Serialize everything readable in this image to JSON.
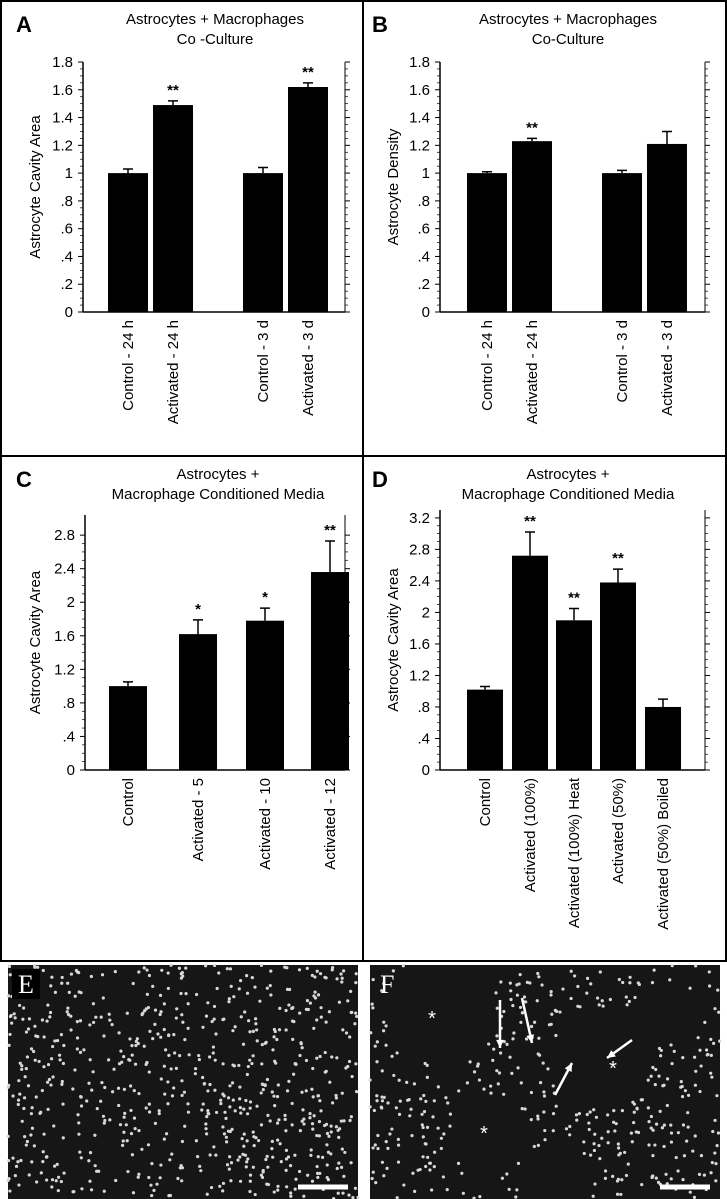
{
  "chart_data": [
    {
      "type": "bar",
      "panel": "A",
      "title": [
        "Astrocytes + Macrophages",
        "Co -Culture"
      ],
      "ylabel": "Astrocyte Cavity Area",
      "categories": [
        "Control - 24 h",
        "Activated - 24 h",
        "Control - 3 d",
        "Activated - 3 d"
      ],
      "values": [
        1.0,
        1.49,
        1.0,
        1.62
      ],
      "errors": [
        0.03,
        0.03,
        0.04,
        0.03
      ],
      "significance": [
        null,
        "**",
        null,
        "**"
      ],
      "color": "#000000",
      "ylim": [
        0,
        1.8
      ],
      "yticks": [
        0,
        {
          "value": 0.2,
          "label": ".2"
        },
        {
          "value": 0.4,
          "label": ".4"
        },
        {
          "value": 0.6,
          "label": ".6"
        },
        {
          "value": 0.8,
          "label": ".8"
        },
        1,
        1.2,
        1.4,
        1.6,
        1.8
      ]
    },
    {
      "type": "bar",
      "panel": "B",
      "title": [
        "Astrocytes + Macrophages",
        "Co-Culture"
      ],
      "ylabel": "Astrocyte Density",
      "categories": [
        "Control - 24 h",
        "Activated - 24 h",
        "Control - 3 d",
        "Activated - 3 d"
      ],
      "values": [
        1.0,
        1.23,
        1.0,
        1.21
      ],
      "errors": [
        0.01,
        0.02,
        0.02,
        0.09
      ],
      "significance": [
        null,
        "**",
        null,
        null
      ],
      "color": "#000000",
      "ylim": [
        0,
        1.8
      ],
      "yticks": [
        0,
        {
          "value": 0.2,
          "label": ".2"
        },
        {
          "value": 0.4,
          "label": ".4"
        },
        {
          "value": 0.6,
          "label": ".6"
        },
        {
          "value": 0.8,
          "label": ".8"
        },
        1,
        1.2,
        1.4,
        1.6,
        1.8
      ]
    },
    {
      "type": "bar",
      "panel": "C",
      "title": [
        "Astrocytes +",
        "Macrophage Conditioned Media"
      ],
      "ylabel": "Astrocyte Cavity Area",
      "categories": [
        "Control",
        "Activated - 5",
        "Activated - 10",
        "Activated - 12"
      ],
      "values": [
        1.0,
        1.62,
        1.78,
        2.36
      ],
      "errors": [
        0.05,
        0.17,
        0.15,
        0.37
      ],
      "significance": [
        null,
        "*",
        "*",
        "**"
      ],
      "color": "#000000",
      "ylim": [
        0,
        3.04
      ],
      "yticks": [
        0,
        {
          "value": 0.4,
          "label": ".4"
        },
        {
          "value": 0.8,
          "label": ".8"
        },
        1.2,
        1.6,
        2,
        2.4,
        2.8
      ]
    },
    {
      "type": "bar",
      "panel": "D",
      "title": [
        "Astrocytes +",
        "Macrophage Conditioned Media"
      ],
      "ylabel": "Astrocyte Cavity Area",
      "categories": [
        "Control",
        "Activated (100%)",
        "Activated (100%) Heat",
        "Activated (50%)",
        "Activated (50%) Boiled"
      ],
      "values": [
        1.02,
        2.72,
        1.9,
        2.38,
        0.8
      ],
      "errors": [
        0.04,
        0.3,
        0.15,
        0.17,
        0.1
      ],
      "significance": [
        null,
        "**",
        "**",
        "**",
        null
      ],
      "color": "#000000",
      "ylim": [
        0,
        3.3
      ],
      "yticks": [
        0,
        {
          "value": 0.4,
          "label": ".4"
        },
        {
          "value": 0.8,
          "label": ".8"
        },
        1.2,
        1.6,
        2,
        2.4,
        2.8,
        3.2
      ]
    }
  ],
  "images": [
    {
      "label": "E"
    },
    {
      "label": "F",
      "annotations": [
        "*",
        "*",
        "*"
      ]
    }
  ]
}
